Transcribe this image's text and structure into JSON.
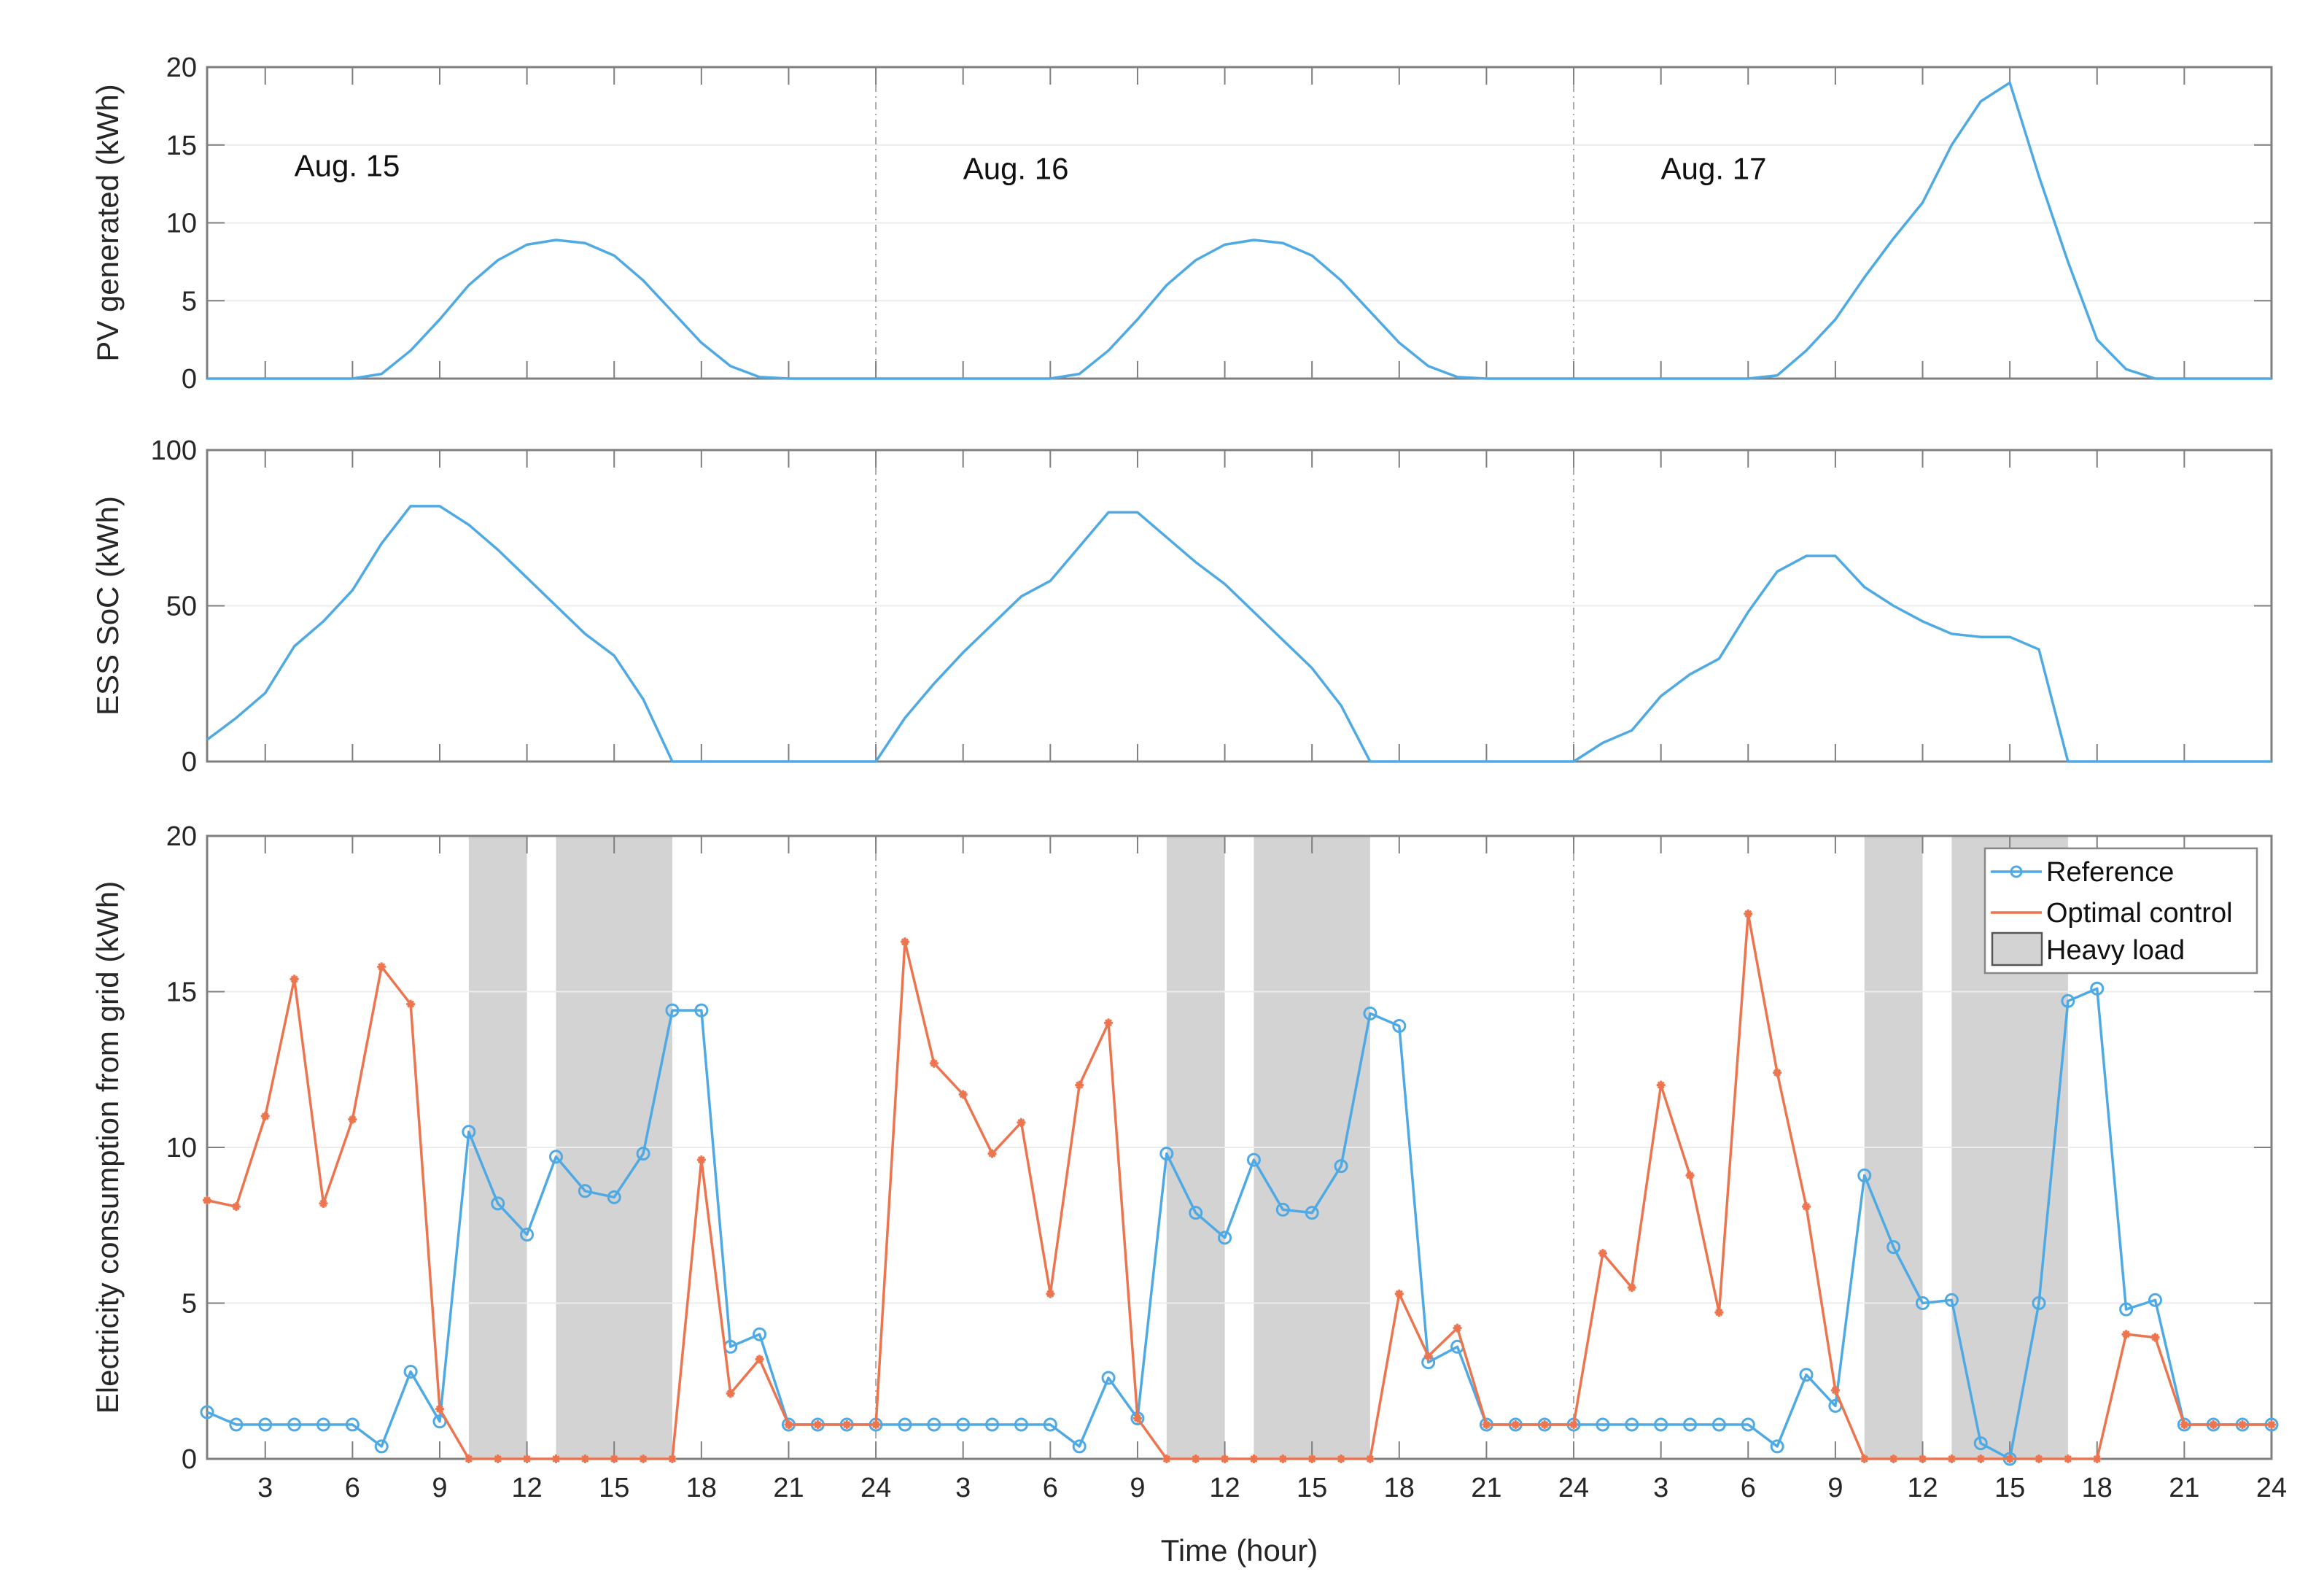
{
  "colors": {
    "reference": "#4FA9E3",
    "optimal": "#EC7550",
    "heavy_load": "#D3D3D3",
    "axis": "#7f7f7f",
    "grid": "#ececec"
  },
  "chart_data": [
    {
      "type": "line",
      "ylabel": "PV generated (kWh)",
      "xlim": [
        1,
        72
      ],
      "ylim": [
        0,
        20
      ],
      "yticks": [
        0,
        5,
        10,
        15,
        20
      ],
      "grid": true,
      "annotations": [
        {
          "text": "Aug. 15",
          "x": 4,
          "y": 13
        },
        {
          "text": "Aug. 16",
          "x": 27,
          "y": 12.8
        },
        {
          "text": "Aug. 17",
          "x": 51,
          "y": 12.8
        }
      ],
      "x": "hours 1..72",
      "series": [
        {
          "values": [
            0,
            0,
            0,
            0,
            0,
            0,
            0.3,
            1.8,
            3.8,
            6,
            7.6,
            8.6,
            8.9,
            8.7,
            7.9,
            6.3,
            4.3,
            2.3,
            0.8,
            0.1,
            0,
            0,
            0,
            0,
            0,
            0,
            0,
            0,
            0,
            0,
            0.3,
            1.8,
            3.8,
            6,
            7.6,
            8.6,
            8.9,
            8.7,
            7.9,
            6.3,
            4.3,
            2.3,
            0.8,
            0.1,
            0,
            0,
            0,
            0,
            0,
            0,
            0,
            0,
            0,
            0,
            0.2,
            1.8,
            3.8,
            6.5,
            9,
            11.3,
            15,
            17.8,
            19,
            13,
            7.5,
            2.5,
            0.6,
            0,
            0,
            0,
            0,
            0
          ]
        }
      ]
    },
    {
      "type": "line",
      "ylabel": "ESS SoC (kWh)",
      "xlim": [
        1,
        72
      ],
      "ylim": [
        0,
        100
      ],
      "yticks": [
        0,
        50,
        100
      ],
      "grid": true,
      "series": [
        {
          "values": [
            7,
            14,
            22,
            37,
            45,
            55,
            70,
            82,
            82,
            76,
            68,
            59,
            50,
            41,
            34,
            20,
            0,
            0,
            0,
            0,
            0,
            0,
            0,
            0,
            14,
            25,
            35,
            44,
            53,
            58,
            69,
            80,
            80,
            72,
            64,
            57,
            48,
            39,
            30,
            18,
            0,
            0,
            0,
            0,
            0,
            0,
            0,
            0,
            6,
            10,
            21,
            28,
            33,
            48,
            61,
            66,
            66,
            56,
            50,
            45,
            41,
            40,
            40,
            36,
            0,
            0,
            0,
            0,
            0,
            0,
            0,
            0
          ]
        }
      ]
    },
    {
      "type": "line",
      "ylabel": "Electricity consumption from grid (kWh)",
      "xlabel": "Time (hour)",
      "xlim": [
        1,
        72
      ],
      "ylim": [
        0,
        20
      ],
      "yticks": [
        0,
        5,
        10,
        15,
        20
      ],
      "xticks": [
        3,
        6,
        9,
        12,
        15,
        18,
        21,
        24,
        27,
        30,
        33,
        36,
        39,
        42,
        45,
        48,
        51,
        54,
        57,
        60,
        63,
        66,
        69,
        72
      ],
      "xticklabels": [
        "3",
        "6",
        "9",
        "12",
        "15",
        "18",
        "21",
        "24",
        "3",
        "6",
        "9",
        "12",
        "15",
        "18",
        "21",
        "24",
        "3",
        "6",
        "9",
        "12",
        "15",
        "18",
        "21",
        "24"
      ],
      "grid": true,
      "legend": "top-right",
      "heavy_load_intervals": [
        [
          10,
          12
        ],
        [
          13,
          17
        ],
        [
          34,
          36
        ],
        [
          37,
          41
        ],
        [
          58,
          60
        ],
        [
          61,
          65
        ]
      ],
      "series": [
        {
          "name": "Reference",
          "marker": "circle",
          "values": [
            1.5,
            1.1,
            1.1,
            1.1,
            1.1,
            1.1,
            0.4,
            2.8,
            1.2,
            10.5,
            8.2,
            7.2,
            9.7,
            8.6,
            8.4,
            9.8,
            14.4,
            14.4,
            3.6,
            4.0,
            1.1,
            1.1,
            1.1,
            1.1,
            1.1,
            1.1,
            1.1,
            1.1,
            1.1,
            1.1,
            0.4,
            2.6,
            1.3,
            9.8,
            7.9,
            7.1,
            9.6,
            8.0,
            7.9,
            9.4,
            14.3,
            13.9,
            3.1,
            3.6,
            1.1,
            1.1,
            1.1,
            1.1,
            1.1,
            1.1,
            1.1,
            1.1,
            1.1,
            1.1,
            0.4,
            2.7,
            1.7,
            9.1,
            6.8,
            5.0,
            5.1,
            0.5,
            0,
            5.0,
            14.7,
            15.1,
            4.8,
            5.1,
            1.1,
            1.1,
            1.1,
            1.1
          ]
        },
        {
          "name": "Optimal control",
          "marker": "asterisk",
          "values": [
            8.3,
            8.1,
            11.0,
            15.4,
            8.2,
            10.9,
            15.8,
            14.6,
            1.6,
            0,
            0,
            0,
            0,
            0,
            0,
            0,
            0,
            9.6,
            2.1,
            3.2,
            1.1,
            1.1,
            1.1,
            1.1,
            16.6,
            12.7,
            11.7,
            9.8,
            10.8,
            5.3,
            12.0,
            14.0,
            1.3,
            0,
            0,
            0,
            0,
            0,
            0,
            0,
            0,
            5.3,
            3.3,
            4.2,
            1.1,
            1.1,
            1.1,
            1.1,
            6.6,
            5.5,
            12.0,
            9.1,
            4.7,
            17.5,
            12.4,
            8.1,
            2.2,
            0,
            0,
            0,
            0,
            0,
            0,
            0,
            0,
            0,
            4.0,
            3.9,
            1.1,
            1.1,
            1.1,
            1.1
          ]
        }
      ],
      "legend_entries": [
        "Reference",
        "Optimal control",
        "Heavy load"
      ]
    }
  ]
}
